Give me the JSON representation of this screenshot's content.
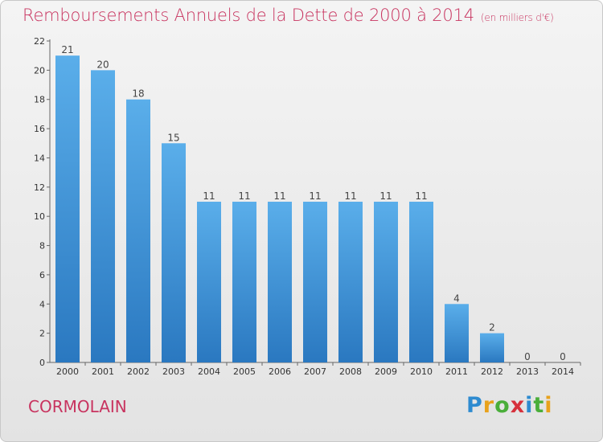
{
  "header": {
    "title": "Remboursements Annuels de la Dette de 2000 à 2014",
    "subtitle": "(en milliers d'€)"
  },
  "footer": {
    "commune": "CORMOLAIN",
    "logo_text": "Proxiti",
    "logo_colors": [
      "#2e8bd0",
      "#e8a21c",
      "#4aae3a",
      "#d6303b",
      "#2e8bd0",
      "#4aae3a",
      "#e8a21c"
    ]
  },
  "chart_data": {
    "type": "bar",
    "title": "Remboursements Annuels de la Dette de 2000 à 2014",
    "subtitle": "(en milliers d'€)",
    "categories": [
      "2000",
      "2001",
      "2002",
      "2003",
      "2004",
      "2005",
      "2006",
      "2007",
      "2008",
      "2009",
      "2010",
      "2011",
      "2012",
      "2013",
      "2014"
    ],
    "values": [
      21,
      20,
      18,
      15,
      11,
      11,
      11,
      11,
      11,
      11,
      11,
      4,
      2,
      0,
      0
    ],
    "ylim": [
      0,
      22
    ],
    "yticks": [
      0,
      2,
      4,
      6,
      8,
      10,
      12,
      14,
      16,
      18,
      20,
      22
    ],
    "grid": false,
    "data_labels": true,
    "colors": {
      "bar_top": "#5aaeea",
      "bar_bottom": "#2a78c0",
      "axis": "#666666",
      "title": "#c8335f"
    }
  }
}
